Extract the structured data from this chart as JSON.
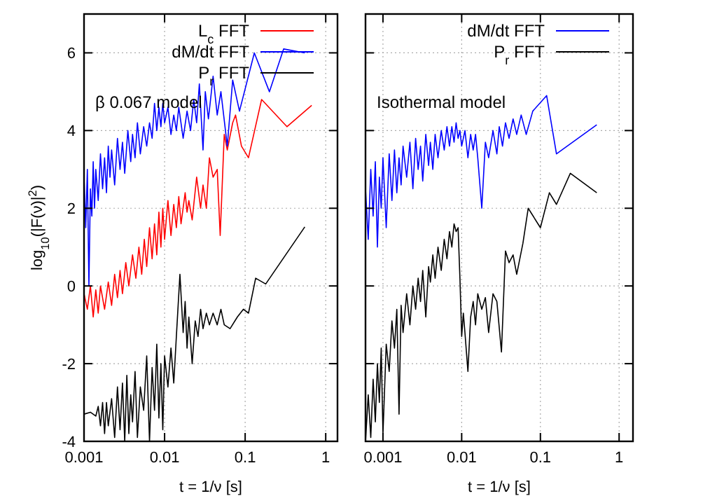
{
  "chart_data": [
    {
      "type": "line",
      "xlabel": "t = 1/ν [s]",
      "ylabel": "log$_{10}$(|F(ν)|$^{2}$)",
      "log": "x",
      "xlim": [
        0.001,
        1.4
      ],
      "xticks": [
        0.001,
        0.01,
        0.1,
        1
      ],
      "ylim": [
        -4,
        7
      ],
      "yticks": [
        -4,
        -2,
        0,
        2,
        4,
        6
      ],
      "grid": true,
      "legend": "top right",
      "line_style": "solid",
      "annotations": [
        "β 0.067 model"
      ],
      "series": [
        {
          "name": "L$_{c}$ FFT",
          "color": "#ff0000",
          "x": [
            0.001,
            0.0011,
            0.0012,
            0.0013,
            0.0014,
            0.0015,
            0.0016,
            0.0018,
            0.002,
            0.0022,
            0.0024,
            0.0026,
            0.0028,
            0.003,
            0.0033,
            0.0036,
            0.004,
            0.0044,
            0.0048,
            0.0052,
            0.0056,
            0.006,
            0.0065,
            0.007,
            0.0075,
            0.008,
            0.0085,
            0.009,
            0.0095,
            0.01,
            0.011,
            0.012,
            0.013,
            0.014,
            0.015,
            0.016,
            0.018,
            0.019,
            0.02,
            0.022,
            0.025,
            0.028,
            0.03,
            0.033,
            0.036,
            0.04,
            0.045,
            0.049,
            0.055,
            0.06,
            0.07,
            0.076,
            0.09,
            0.11,
            0.16,
            0.33,
            0.67
          ],
          "values": [
            -0.2,
            -0.6,
            0.0,
            -0.8,
            -0.1,
            -0.7,
            0.0,
            -0.6,
            0.1,
            -0.5,
            0.3,
            -0.3,
            0.4,
            -0.2,
            0.6,
            0.0,
            0.8,
            0.2,
            1.0,
            0.3,
            1.2,
            0.5,
            1.5,
            0.7,
            1.6,
            0.8,
            1.9,
            1.0,
            2.0,
            1.2,
            2.2,
            1.3,
            2.1,
            1.5,
            2.3,
            1.6,
            2.4,
            1.9,
            2.2,
            1.7,
            2.8,
            2.0,
            2.6,
            2.0,
            3.3,
            2.8,
            3.0,
            1.3,
            3.9,
            3.5,
            4.2,
            4.4,
            3.6,
            3.3,
            4.8,
            4.1,
            4.65
          ]
        },
        {
          "name": "dM/dt FFT",
          "color": "#0000ff",
          "x": [
            0.001,
            0.00105,
            0.0011,
            0.00115,
            0.0012,
            0.00125,
            0.0013,
            0.00135,
            0.0014,
            0.0015,
            0.0016,
            0.0017,
            0.0018,
            0.0019,
            0.002,
            0.0021,
            0.0022,
            0.0024,
            0.0026,
            0.0028,
            0.003,
            0.0032,
            0.0035,
            0.0038,
            0.004,
            0.0043,
            0.0046,
            0.005,
            0.0055,
            0.006,
            0.0065,
            0.007,
            0.0075,
            0.008,
            0.0085,
            0.009,
            0.0095,
            0.01,
            0.011,
            0.012,
            0.013,
            0.014,
            0.015,
            0.017,
            0.019,
            0.021,
            0.023,
            0.025,
            0.027,
            0.03,
            0.032,
            0.035,
            0.04,
            0.045,
            0.05,
            0.06,
            0.07,
            0.085,
            0.13,
            0.2,
            0.3,
            0.55
          ],
          "values": [
            2.8,
            1.5,
            3.0,
            0.0,
            2.5,
            1.8,
            3.2,
            2.0,
            3.0,
            2.2,
            3.4,
            2.5,
            3.3,
            2.4,
            3.6,
            2.8,
            3.5,
            2.6,
            3.8,
            3.0,
            3.7,
            2.9,
            4.0,
            3.2,
            3.9,
            3.3,
            4.2,
            3.4,
            4.1,
            3.6,
            4.2,
            3.8,
            4.7,
            4.0,
            4.6,
            4.1,
            4.7,
            4.2,
            4.6,
            3.9,
            4.4,
            4.0,
            4.6,
            3.8,
            4.5,
            4.0,
            4.8,
            4.2,
            5.2,
            3.5,
            5.0,
            4.3,
            5.4,
            4.4,
            5.0,
            3.6,
            5.3,
            4.5,
            6.0,
            5.0,
            6.1,
            6.0
          ]
        },
        {
          "name": "P$_{r}$ FFT",
          "color": "#000000",
          "x": [
            0.001,
            0.0012,
            0.0014,
            0.0015,
            0.0016,
            0.0017,
            0.0018,
            0.0019,
            0.002,
            0.0022,
            0.0024,
            0.0026,
            0.0028,
            0.003,
            0.0032,
            0.0034,
            0.0036,
            0.0038,
            0.004,
            0.0043,
            0.0046,
            0.005,
            0.0055,
            0.006,
            0.0065,
            0.007,
            0.0075,
            0.008,
            0.0085,
            0.009,
            0.0095,
            0.01,
            0.011,
            0.012,
            0.013,
            0.014,
            0.0155,
            0.017,
            0.018,
            0.019,
            0.02,
            0.022,
            0.024,
            0.026,
            0.028,
            0.03,
            0.033,
            0.036,
            0.04,
            0.045,
            0.05,
            0.055,
            0.065,
            0.08,
            0.095,
            0.11,
            0.135,
            0.18,
            0.55
          ],
          "values": [
            -3.3,
            -3.25,
            -3.35,
            -3.1,
            -3.6,
            -3.0,
            -3.8,
            -3.0,
            -3.6,
            -2.9,
            -3.9,
            -2.6,
            -3.7,
            -2.5,
            -4.0,
            -2.3,
            -3.8,
            -2.8,
            -3.5,
            -2.2,
            -3.9,
            -2.6,
            -3.2,
            -1.8,
            -4.0,
            -2.1,
            -3.2,
            -1.5,
            -3.4,
            -2.0,
            -3.7,
            -1.8,
            -2.6,
            -1.6,
            -2.5,
            -1.3,
            0.3,
            -1.2,
            -0.4,
            -1.6,
            -0.8,
            -2.0,
            -0.9,
            -1.3,
            -0.6,
            -1.1,
            -0.7,
            -1.0,
            -0.7,
            -1.0,
            -0.6,
            -1.0,
            -1.1,
            -0.8,
            -0.6,
            -0.7,
            0.2,
            0.05,
            1.52
          ]
        }
      ]
    },
    {
      "type": "line",
      "xlabel": "t = 1/ν [s]",
      "log": "x",
      "xlim": [
        0.0006,
        1.5
      ],
      "xticks": [
        0.001,
        0.01,
        0.1,
        1
      ],
      "ylim": [
        -4,
        7
      ],
      "yticks": [
        -4,
        -2,
        0,
        2,
        4,
        6
      ],
      "tick_labels": "x",
      "grid": true,
      "legend": "top right",
      "line_style": "solid",
      "annotations": [
        "Isothermal model"
      ],
      "series": [
        {
          "name": "dM/dt FFT",
          "color": "#0000ff",
          "x": [
            0.0006,
            0.00065,
            0.0007,
            0.00075,
            0.0008,
            0.00085,
            0.0009,
            0.00095,
            0.001,
            0.0011,
            0.0012,
            0.0013,
            0.0014,
            0.0015,
            0.0016,
            0.0017,
            0.0018,
            0.002,
            0.0022,
            0.0024,
            0.0026,
            0.0028,
            0.003,
            0.0032,
            0.0035,
            0.0038,
            0.004,
            0.0043,
            0.0046,
            0.005,
            0.0055,
            0.006,
            0.0065,
            0.007,
            0.0075,
            0.008,
            0.0085,
            0.009,
            0.0095,
            0.01,
            0.011,
            0.012,
            0.013,
            0.014,
            0.015,
            0.016,
            0.018,
            0.02,
            0.022,
            0.025,
            0.028,
            0.03,
            0.033,
            0.036,
            0.04,
            0.045,
            0.05,
            0.057,
            0.066,
            0.08,
            0.12,
            0.16,
            0.52
          ],
          "values": [
            2.5,
            1.2,
            3.0,
            1.8,
            3.2,
            1.0,
            2.8,
            2.0,
            3.3,
            1.5,
            3.4,
            2.2,
            3.5,
            2.4,
            3.3,
            2.6,
            3.6,
            2.8,
            3.7,
            2.5,
            3.8,
            3.0,
            3.6,
            2.7,
            3.9,
            3.1,
            3.7,
            3.0,
            3.9,
            3.3,
            4.0,
            3.5,
            4.1,
            3.6,
            4.1,
            3.7,
            4.2,
            3.8,
            4.0,
            3.6,
            4.0,
            3.3,
            3.9,
            3.5,
            3.9,
            3.3,
            2.0,
            3.7,
            3.3,
            4.0,
            3.4,
            4.1,
            3.6,
            4.2,
            3.8,
            4.3,
            3.9,
            4.4,
            3.9,
            4.5,
            4.9,
            3.4,
            4.15
          ]
        },
        {
          "name": "P$_{r}$ FFT",
          "color": "#000000",
          "x": [
            0.0006,
            0.00065,
            0.0007,
            0.00075,
            0.0008,
            0.00085,
            0.0009,
            0.00095,
            0.001,
            0.0011,
            0.0012,
            0.0013,
            0.0014,
            0.0015,
            0.0016,
            0.0017,
            0.0018,
            0.002,
            0.0022,
            0.0024,
            0.0026,
            0.0028,
            0.003,
            0.0032,
            0.0035,
            0.0038,
            0.004,
            0.0043,
            0.0046,
            0.005,
            0.0055,
            0.006,
            0.0065,
            0.007,
            0.0075,
            0.008,
            0.0085,
            0.009,
            0.0095,
            0.01,
            0.0105,
            0.011,
            0.012,
            0.013,
            0.014,
            0.015,
            0.016,
            0.018,
            0.02,
            0.022,
            0.025,
            0.028,
            0.032,
            0.036,
            0.04,
            0.045,
            0.05,
            0.06,
            0.07,
            0.1,
            0.13,
            0.16,
            0.24,
            0.52
          ],
          "values": [
            -4.0,
            -2.8,
            -3.9,
            -2.4,
            -3.5,
            -2.0,
            -3.0,
            -1.6,
            -3.8,
            -1.5,
            -2.2,
            -0.9,
            -1.6,
            -0.6,
            -3.3,
            -0.5,
            -1.2,
            -0.2,
            -1.0,
            0.0,
            -0.6,
            0.2,
            -0.4,
            0.4,
            -0.8,
            0.5,
            0.1,
            0.8,
            0.2,
            1.0,
            0.4,
            1.2,
            0.7,
            1.4,
            1.0,
            1.6,
            1.4,
            1.5,
            0.2,
            -1.3,
            -0.7,
            -1.2,
            -2.2,
            -0.8,
            -0.4,
            -1.0,
            -0.2,
            -0.6,
            -0.3,
            -1.2,
            -0.2,
            -0.4,
            -1.7,
            0.9,
            0.6,
            0.8,
            0.3,
            1.1,
            2.0,
            1.5,
            2.4,
            2.1,
            2.9,
            2.4
          ]
        }
      ]
    }
  ]
}
